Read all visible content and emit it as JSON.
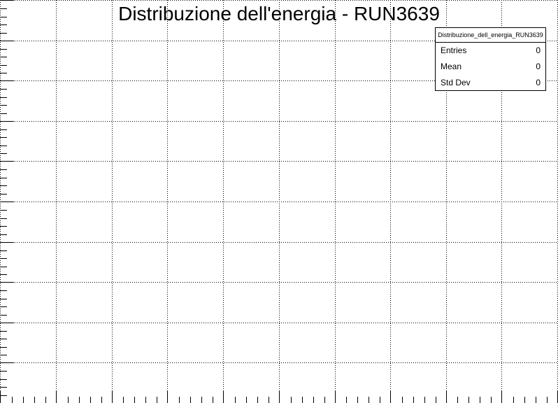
{
  "title": "Distribuzione dell'energia - RUN3639",
  "stats": {
    "name": "Distribuzione_dell_energia_RUN3639",
    "rows": [
      {
        "label": "Entries",
        "value": "0"
      },
      {
        "label": "Mean",
        "value": "0"
      },
      {
        "label": "Std Dev",
        "value": "0"
      }
    ]
  },
  "chart_data": {
    "type": "bar",
    "title": "Distribuzione dell'energia - RUN3639",
    "xlabel": "",
    "ylabel": "",
    "series": [],
    "grid": true,
    "grid_style": "dotted",
    "legend": "top-right",
    "entries": 0,
    "mean": 0,
    "std_dev": 0,
    "axis_color": "#000000",
    "grid_color": "#000000"
  }
}
